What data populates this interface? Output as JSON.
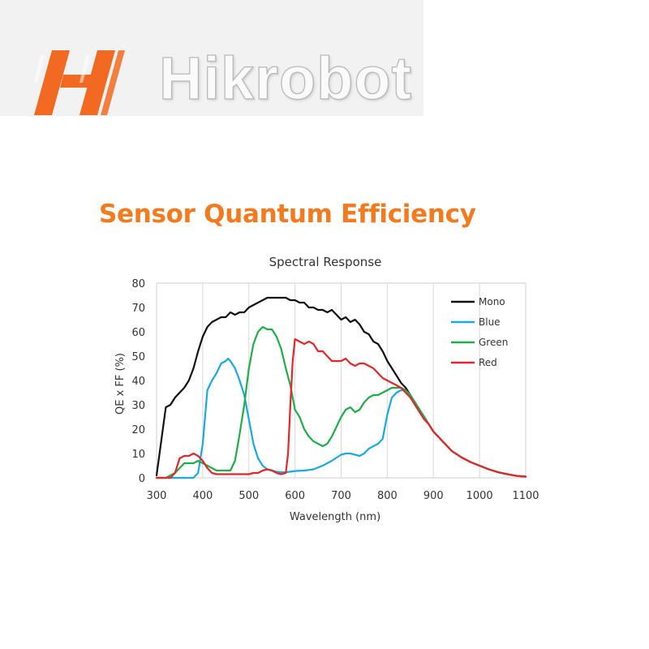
{
  "brand": {
    "logo_letter": "H",
    "name": "Hikrobot",
    "colors": {
      "logo_orange": "#f26a21",
      "name_fill": "#fafafa",
      "name_outline": "#b9b9b9"
    }
  },
  "headline": "Sensor Quantum Efficiency",
  "colors": {
    "headline": "#f47a20"
  },
  "chart_data": {
    "type": "line",
    "title": "Spectral Response",
    "xlabel": "Wavelength (nm)",
    "ylabel": "QE x FF (%)",
    "xlim": [
      300,
      1100
    ],
    "ylim": [
      0,
      80
    ],
    "xticks": [
      300,
      400,
      500,
      600,
      700,
      800,
      900,
      1000,
      1100
    ],
    "yticks": [
      0,
      10,
      20,
      30,
      40,
      50,
      60,
      70,
      80
    ],
    "grid": "vertical",
    "legend_position": "top-right",
    "series": [
      {
        "name": "Mono",
        "color": "#111111",
        "x": [
          300,
          310,
          320,
          330,
          340,
          350,
          360,
          370,
          380,
          390,
          400,
          410,
          420,
          430,
          440,
          450,
          460,
          470,
          480,
          490,
          500,
          510,
          520,
          530,
          540,
          550,
          560,
          570,
          580,
          590,
          600,
          610,
          620,
          630,
          640,
          650,
          660,
          670,
          680,
          690,
          700,
          710,
          720,
          730,
          740,
          750,
          760,
          770,
          780,
          790,
          800,
          810,
          820,
          830,
          840,
          850,
          860,
          870,
          880,
          890,
          900,
          920,
          940,
          960,
          980,
          1000,
          1020,
          1040,
          1060,
          1080,
          1100
        ],
        "y": [
          1,
          15,
          29,
          30,
          33,
          35,
          37,
          40,
          45,
          52,
          58,
          62,
          64,
          65,
          66,
          66,
          68,
          67,
          68,
          68,
          70,
          71,
          72,
          73,
          74,
          74,
          74,
          74,
          74,
          73,
          73,
          72,
          72,
          70,
          70,
          69,
          69,
          68,
          69,
          67,
          65,
          66,
          64,
          65,
          63,
          60,
          59,
          56,
          55,
          52,
          48,
          45,
          42,
          39,
          37,
          34,
          31,
          28,
          25,
          22,
          19,
          15,
          11,
          8.5,
          6.5,
          5,
          3.5,
          2.3,
          1.5,
          0.8,
          0.5
        ]
      },
      {
        "name": "Blue",
        "color": "#1aa9e0",
        "x": [
          300,
          350,
          370,
          380,
          390,
          400,
          410,
          420,
          430,
          440,
          450,
          455,
          460,
          470,
          480,
          490,
          500,
          510,
          520,
          530,
          540,
          550,
          560,
          570,
          580,
          600,
          620,
          640,
          660,
          680,
          700,
          710,
          720,
          730,
          740,
          750,
          760,
          770,
          780,
          790,
          800,
          810,
          820,
          830,
          840,
          850,
          860,
          870,
          880,
          890,
          900,
          920,
          940,
          960,
          980,
          1000,
          1020,
          1040,
          1060,
          1080,
          1100
        ],
        "y": [
          0,
          0,
          0,
          0,
          2,
          14,
          36,
          40,
          43,
          47,
          48,
          49,
          48,
          45,
          40,
          34,
          24,
          14,
          8,
          5,
          3.5,
          3,
          2.5,
          2.3,
          2.3,
          2.8,
          3,
          3.5,
          5,
          7,
          9.5,
          10,
          10,
          9.5,
          9,
          10,
          12,
          13,
          14,
          16,
          26,
          33,
          35,
          36,
          36,
          34,
          31,
          28,
          25,
          22,
          19,
          15,
          11,
          8.5,
          6.5,
          5,
          3.5,
          2.3,
          1.5,
          0.8,
          0.5
        ]
      },
      {
        "name": "Green",
        "color": "#1fad4b",
        "x": [
          300,
          320,
          330,
          340,
          350,
          360,
          370,
          380,
          390,
          400,
          410,
          420,
          430,
          440,
          450,
          460,
          470,
          480,
          490,
          500,
          510,
          520,
          530,
          540,
          550,
          560,
          570,
          580,
          590,
          600,
          610,
          620,
          630,
          640,
          650,
          660,
          670,
          680,
          690,
          700,
          710,
          720,
          730,
          740,
          750,
          760,
          770,
          780,
          790,
          800,
          810,
          820,
          830,
          840,
          850,
          860,
          870,
          880,
          890,
          900,
          920,
          940,
          960,
          980,
          1000,
          1020,
          1040,
          1060,
          1080,
          1100
        ],
        "y": [
          0,
          0,
          1,
          2,
          4,
          6,
          6,
          6,
          7,
          6,
          5,
          4,
          3,
          3,
          3,
          3,
          7,
          18,
          30,
          45,
          55,
          60,
          62,
          61,
          61,
          58,
          53,
          45,
          38,
          28,
          25,
          20,
          17,
          15,
          14,
          13,
          14,
          17,
          21,
          25,
          28,
          29,
          27,
          28,
          31,
          33,
          34,
          34,
          35,
          36,
          37,
          37,
          37,
          36,
          34,
          31,
          28,
          25,
          22,
          19,
          15,
          11,
          8.5,
          6.5,
          5,
          3.5,
          2.3,
          1.5,
          0.8,
          0.5
        ]
      },
      {
        "name": "Red",
        "color": "#e42529",
        "x": [
          300,
          330,
          340,
          350,
          360,
          370,
          380,
          390,
          400,
          410,
          420,
          430,
          440,
          450,
          460,
          470,
          480,
          490,
          500,
          510,
          520,
          530,
          540,
          550,
          560,
          570,
          580,
          585,
          590,
          595,
          600,
          610,
          620,
          630,
          640,
          650,
          660,
          670,
          680,
          690,
          700,
          710,
          720,
          730,
          740,
          750,
          760,
          770,
          780,
          790,
          800,
          810,
          820,
          830,
          840,
          850,
          860,
          870,
          880,
          890,
          900,
          920,
          940,
          960,
          980,
          1000,
          1020,
          1040,
          1060,
          1080,
          1100
        ],
        "y": [
          0,
          0,
          2,
          8,
          9,
          9,
          10,
          9,
          7,
          4,
          2,
          1.5,
          1.5,
          1.5,
          1.5,
          1.5,
          1.5,
          1.5,
          1.5,
          2,
          2,
          3,
          3.5,
          3,
          2,
          1.5,
          2,
          10,
          30,
          48,
          57,
          56,
          55,
          56,
          55,
          52,
          52,
          50,
          48,
          48,
          48,
          49,
          47,
          46,
          47,
          47,
          46,
          45,
          43,
          41,
          40,
          39,
          38,
          37,
          35,
          33,
          30,
          27,
          24,
          22,
          19,
          15,
          11,
          8.5,
          6.5,
          5,
          3.5,
          2.3,
          1.5,
          0.8,
          0.5
        ]
      }
    ]
  }
}
